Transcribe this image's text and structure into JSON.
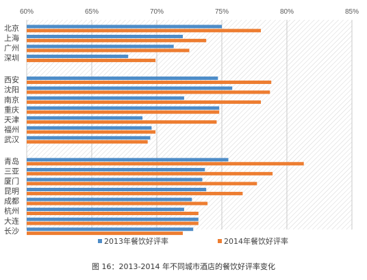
{
  "caption": "图 16：2013-2014 年不同城市酒店的餐饮好评率变化",
  "chart_data": {
    "type": "bar",
    "orientation": "horizontal",
    "title": "",
    "xlabel": "",
    "ylabel": "",
    "xlim": [
      60,
      85
    ],
    "x_tick_values": [
      60,
      65,
      70,
      75,
      80,
      85
    ],
    "x_tick_labels": [
      "60%",
      "65%",
      "70%",
      "75%",
      "80%",
      "85%"
    ],
    "x_axis_position": "top",
    "plot_background": "diagonal hatch",
    "legend_position": "bottom",
    "groups": [
      [
        "北京",
        "上海",
        "广州",
        "深圳"
      ],
      [
        "西安",
        "沈阳",
        "南京",
        "重庆",
        "天津",
        "福州",
        "武汉"
      ],
      [
        "青岛",
        "三亚",
        "厦门",
        "昆明",
        "成都",
        "杭州",
        "大连",
        "长沙"
      ]
    ],
    "categories": [
      "北京",
      "上海",
      "广州",
      "深圳",
      "西安",
      "沈阳",
      "南京",
      "重庆",
      "天津",
      "福州",
      "武汉",
      "青岛",
      "三亚",
      "厦门",
      "昆明",
      "成都",
      "杭州",
      "大连",
      "长沙"
    ],
    "series": [
      {
        "name": "2013年餐饮好评率",
        "color": "#4e8cc7",
        "values": [
          75.0,
          72.0,
          71.3,
          67.8,
          74.7,
          75.8,
          72.1,
          74.8,
          68.9,
          69.6,
          69.5,
          75.5,
          73.7,
          73.5,
          73.8,
          72.7,
          72.1,
          73.2,
          72.8
        ]
      },
      {
        "name": "2014年餐饮好评率",
        "color": "#ed7d31",
        "values": [
          78.0,
          73.8,
          72.5,
          69.9,
          78.8,
          78.7,
          78.0,
          74.8,
          74.6,
          69.9,
          69.3,
          81.3,
          78.9,
          77.7,
          76.6,
          73.9,
          73.2,
          73.2,
          72.0
        ]
      }
    ]
  }
}
